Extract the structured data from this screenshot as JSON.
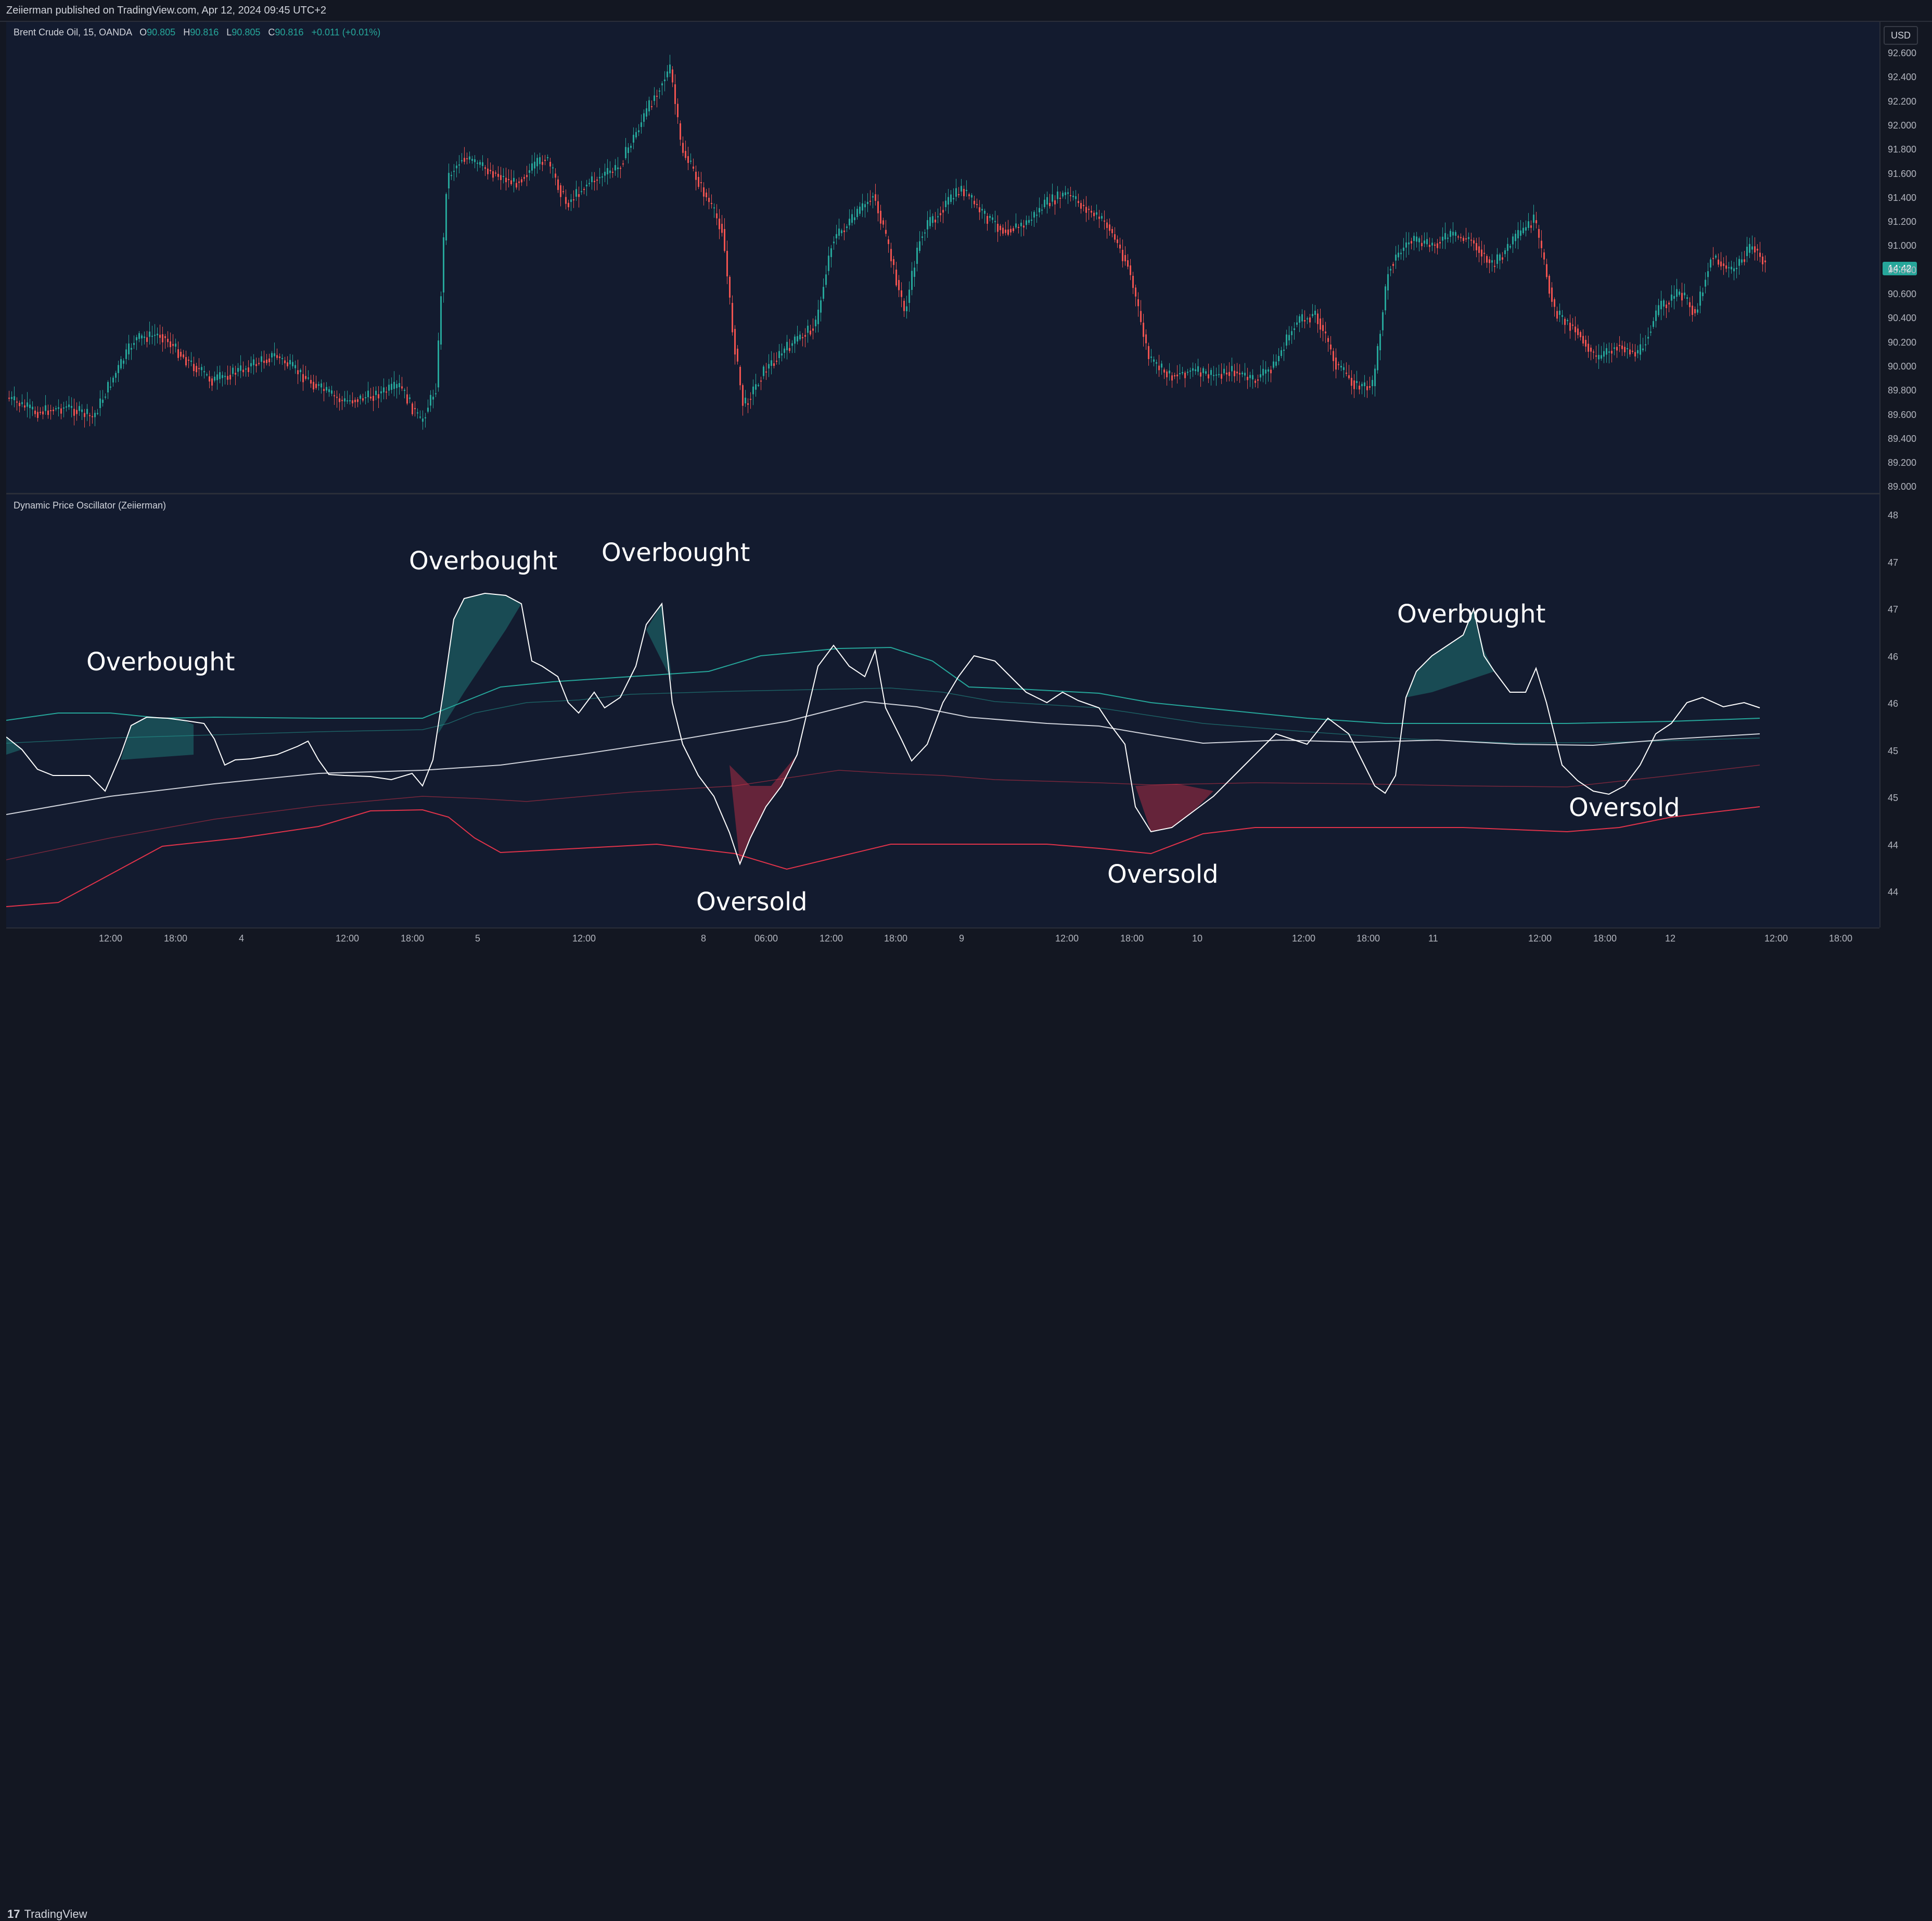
{
  "header": {
    "publish_line": "Zeiierman published on TradingView.com, Apr 12, 2024 09:45 UTC+2"
  },
  "legend": {
    "symbol": "Brent Crude Oil, 15, OANDA",
    "open_label": "O",
    "open": "90.805",
    "high_label": "H",
    "high": "90.816",
    "low_label": "L",
    "low": "90.805",
    "close_label": "C",
    "close": "90.816",
    "change": "+0.011 (+0.01%)"
  },
  "indicator": {
    "title": "Dynamic Price Oscillator (Zeiierman)"
  },
  "price_axis": {
    "currency": "USD",
    "current_tag": "14:42",
    "ticks": [
      "92.600",
      "92.400",
      "92.200",
      "92.000",
      "91.800",
      "91.600",
      "91.400",
      "91.200",
      "91.000",
      "90.800",
      "90.600",
      "90.400",
      "90.200",
      "90.000",
      "89.800",
      "89.600",
      "89.400",
      "89.200",
      "89.000"
    ]
  },
  "osc_axis": {
    "ticks": [
      "48",
      "47",
      "47",
      "46",
      "46",
      "45",
      "45",
      "44",
      "44"
    ]
  },
  "time_axis": {
    "ticks": [
      "12:00",
      "18:00",
      "4",
      "12:00",
      "18:00",
      "5",
      "12:00",
      "8",
      "06:00",
      "12:00",
      "18:00",
      "9",
      "12:00",
      "18:00",
      "10",
      "12:00",
      "18:00",
      "11",
      "12:00",
      "18:00",
      "12",
      "12:00",
      "18:00"
    ]
  },
  "annotations": {
    "a1": "Overbought",
    "a2": "Overbought",
    "a3": "Overbought",
    "a4": "Overbought",
    "b1": "Oversold",
    "b2": "Oversold",
    "b3": "Oversold"
  },
  "footer": {
    "brand": "TradingView",
    "logo_mark": "17"
  },
  "colors": {
    "bg": "#131b2f",
    "up": "#26a69a",
    "down": "#ef5350",
    "band_up": "#26a69a",
    "band_down": "#e0334a",
    "osc": "#ffffff"
  }
}
